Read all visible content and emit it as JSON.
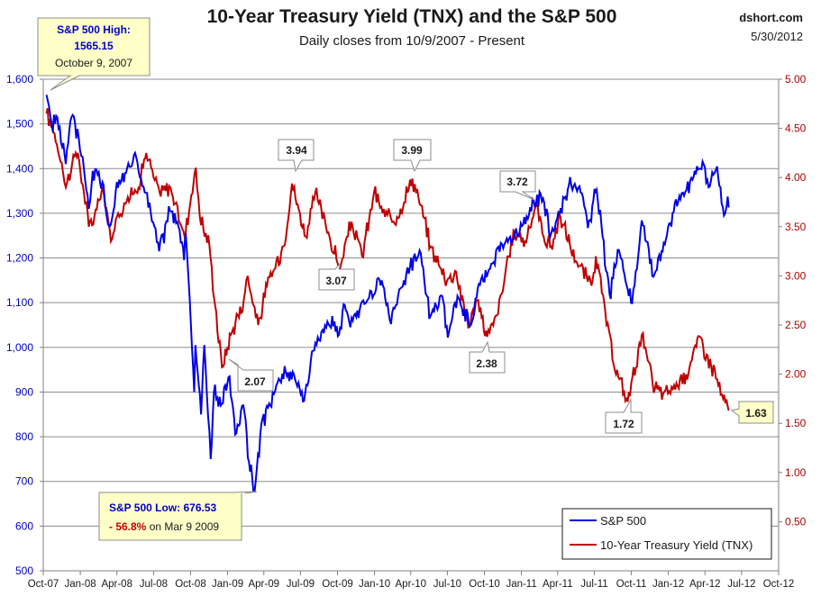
{
  "chart_data": {
    "type": "line",
    "title": "10-Year Treasury Yield (TNX) and the S&P 500",
    "subtitle": "Daily closes from 10/9/2007 - Present",
    "credit": "dshort.com",
    "date": "5/30/2012",
    "x_ticks": [
      "Oct-07",
      "Jan-08",
      "Apr-08",
      "Jul-08",
      "Oct-08",
      "Jan-09",
      "Apr-09",
      "Jul-09",
      "Oct-09",
      "Jan-10",
      "Apr-10",
      "Jul-10",
      "Oct-10",
      "Jan-11",
      "Apr-11",
      "Jul-11",
      "Oct-11",
      "Jan-12",
      "Apr-12",
      "Jul-12",
      "Oct-12"
    ],
    "x_range": [
      "2007-10-01",
      "2012-10-01"
    ],
    "y_left": {
      "min": 500,
      "max": 1600,
      "ticks": [
        "500",
        "600",
        "700",
        "800",
        "900",
        "1,000",
        "1,100",
        "1,200",
        "1,300",
        "1,400",
        "1,500",
        "1,600"
      ],
      "color": "#0000c8"
    },
    "y_right": {
      "min": 0.0,
      "max": 5.0,
      "ticks": [
        "0.50",
        "1.00",
        "1.50",
        "2.00",
        "2.50",
        "3.00",
        "3.50",
        "4.00",
        "4.50",
        "5.00"
      ],
      "color": "#b00000"
    },
    "grid": "horizontal",
    "legend_position": "bottom-right",
    "series": [
      {
        "name": "S&P 500",
        "axis": "left",
        "color": "#0000e6",
        "points": [
          [
            "2007-10-09",
            1565
          ],
          [
            "2007-10-22",
            1500
          ],
          [
            "2007-11-05",
            1515
          ],
          [
            "2007-11-26",
            1410
          ],
          [
            "2007-12-10",
            1515
          ],
          [
            "2007-12-28",
            1470
          ],
          [
            "2008-01-10",
            1400
          ],
          [
            "2008-01-22",
            1310
          ],
          [
            "2008-02-01",
            1395
          ],
          [
            "2008-02-25",
            1370
          ],
          [
            "2008-03-10",
            1275
          ],
          [
            "2008-03-17",
            1275
          ],
          [
            "2008-04-01",
            1370
          ],
          [
            "2008-04-21",
            1390
          ],
          [
            "2008-05-19",
            1425
          ],
          [
            "2008-06-06",
            1360
          ],
          [
            "2008-06-30",
            1280
          ],
          [
            "2008-07-15",
            1215
          ],
          [
            "2008-08-11",
            1305
          ],
          [
            "2008-09-01",
            1270
          ],
          [
            "2008-09-15",
            1195
          ],
          [
            "2008-09-19",
            1255
          ],
          [
            "2008-09-29",
            1105
          ],
          [
            "2008-10-10",
            900
          ],
          [
            "2008-10-13",
            1005
          ],
          [
            "2008-10-27",
            850
          ],
          [
            "2008-11-04",
            1005
          ],
          [
            "2008-11-20",
            750
          ],
          [
            "2008-11-28",
            900
          ],
          [
            "2008-12-15",
            870
          ],
          [
            "2009-01-06",
            935
          ],
          [
            "2009-01-20",
            805
          ],
          [
            "2009-02-09",
            870
          ],
          [
            "2009-02-23",
            745
          ],
          [
            "2009-03-09",
            677
          ],
          [
            "2009-03-26",
            830
          ],
          [
            "2009-04-17",
            870
          ],
          [
            "2009-05-08",
            930
          ],
          [
            "2009-06-12",
            945
          ],
          [
            "2009-07-10",
            880
          ],
          [
            "2009-08-07",
            1010
          ],
          [
            "2009-09-18",
            1070
          ],
          [
            "2009-10-02",
            1025
          ],
          [
            "2009-10-19",
            1095
          ],
          [
            "2009-11-02",
            1045
          ],
          [
            "2009-12-04",
            1105
          ],
          [
            "2010-01-19",
            1150
          ],
          [
            "2010-02-08",
            1060
          ],
          [
            "2010-03-15",
            1150
          ],
          [
            "2010-04-23",
            1217
          ],
          [
            "2010-05-20",
            1070
          ],
          [
            "2010-06-18",
            1115
          ],
          [
            "2010-07-02",
            1022
          ],
          [
            "2010-07-26",
            1115
          ],
          [
            "2010-08-26",
            1047
          ],
          [
            "2010-09-20",
            1140
          ],
          [
            "2010-10-15",
            1176
          ],
          [
            "2010-11-05",
            1225
          ],
          [
            "2010-12-10",
            1240
          ],
          [
            "2011-01-14",
            1293
          ],
          [
            "2011-02-18",
            1343
          ],
          [
            "2011-03-16",
            1256
          ],
          [
            "2011-04-29",
            1363
          ],
          [
            "2011-05-31",
            1345
          ],
          [
            "2011-06-15",
            1267
          ],
          [
            "2011-07-07",
            1353
          ],
          [
            "2011-08-08",
            1119
          ],
          [
            "2011-08-31",
            1218
          ],
          [
            "2011-09-22",
            1130
          ],
          [
            "2011-10-03",
            1099
          ],
          [
            "2011-10-27",
            1284
          ],
          [
            "2011-11-25",
            1158
          ],
          [
            "2011-12-15",
            1215
          ],
          [
            "2012-01-03",
            1277
          ],
          [
            "2012-02-03",
            1345
          ],
          [
            "2012-03-01",
            1375
          ],
          [
            "2012-03-26",
            1416
          ],
          [
            "2012-04-10",
            1358
          ],
          [
            "2012-05-01",
            1405
          ],
          [
            "2012-05-18",
            1295
          ],
          [
            "2012-05-25",
            1318
          ],
          [
            "2012-05-30",
            1313
          ]
        ]
      },
      {
        "name": "10-Year Treasury Yield (TNX)",
        "axis": "right",
        "color": "#c00000",
        "points": [
          [
            "2007-10-09",
            4.65
          ],
          [
            "2007-10-29",
            4.45
          ],
          [
            "2007-11-16",
            4.15
          ],
          [
            "2007-11-26",
            3.9
          ],
          [
            "2007-12-12",
            4.15
          ],
          [
            "2007-12-26",
            4.25
          ],
          [
            "2008-01-10",
            3.85
          ],
          [
            "2008-01-22",
            3.5
          ],
          [
            "2008-02-05",
            3.6
          ],
          [
            "2008-02-26",
            3.9
          ],
          [
            "2008-03-17",
            3.35
          ],
          [
            "2008-04-01",
            3.6
          ],
          [
            "2008-04-28",
            3.8
          ],
          [
            "2008-05-19",
            3.85
          ],
          [
            "2008-06-13",
            4.25
          ],
          [
            "2008-07-01",
            4.0
          ],
          [
            "2008-07-16",
            3.85
          ],
          [
            "2008-08-12",
            3.9
          ],
          [
            "2008-09-16",
            3.4
          ],
          [
            "2008-10-14",
            4.1
          ],
          [
            "2008-10-24",
            3.6
          ],
          [
            "2008-11-17",
            3.3
          ],
          [
            "2008-12-01",
            2.7
          ],
          [
            "2008-12-18",
            2.07
          ],
          [
            "2009-01-09",
            2.4
          ],
          [
            "2009-02-10",
            2.75
          ],
          [
            "2009-02-20",
            3.0
          ],
          [
            "2009-03-18",
            2.5
          ],
          [
            "2009-04-09",
            2.9
          ],
          [
            "2009-05-20",
            3.3
          ],
          [
            "2009-06-10",
            3.94
          ],
          [
            "2009-07-14",
            3.4
          ],
          [
            "2009-08-07",
            3.85
          ],
          [
            "2009-09-11",
            3.4
          ],
          [
            "2009-10-07",
            3.07
          ],
          [
            "2009-11-05",
            3.55
          ],
          [
            "2009-12-01",
            3.2
          ],
          [
            "2009-12-31",
            3.85
          ],
          [
            "2010-01-27",
            3.6
          ],
          [
            "2010-02-26",
            3.6
          ],
          [
            "2010-04-05",
            3.99
          ],
          [
            "2010-04-20",
            3.8
          ],
          [
            "2010-05-20",
            3.3
          ],
          [
            "2010-06-30",
            2.95
          ],
          [
            "2010-07-20",
            3.05
          ],
          [
            "2010-08-25",
            2.5
          ],
          [
            "2010-09-13",
            2.75
          ],
          [
            "2010-10-08",
            2.38
          ],
          [
            "2010-11-01",
            2.6
          ],
          [
            "2010-12-15",
            3.45
          ],
          [
            "2011-01-10",
            3.35
          ],
          [
            "2011-02-08",
            3.72
          ],
          [
            "2011-02-25",
            3.4
          ],
          [
            "2011-03-16",
            3.3
          ],
          [
            "2011-04-08",
            3.6
          ],
          [
            "2011-05-16",
            3.15
          ],
          [
            "2011-06-24",
            2.9
          ],
          [
            "2011-07-05",
            3.2
          ],
          [
            "2011-08-18",
            2.1
          ],
          [
            "2011-09-22",
            1.72
          ],
          [
            "2011-10-27",
            2.4
          ],
          [
            "2011-11-23",
            1.9
          ],
          [
            "2011-12-19",
            1.8
          ],
          [
            "2012-01-12",
            1.85
          ],
          [
            "2012-02-14",
            2.0
          ],
          [
            "2012-03-19",
            2.38
          ],
          [
            "2012-04-05",
            2.2
          ],
          [
            "2012-05-01",
            1.95
          ],
          [
            "2012-05-16",
            1.75
          ],
          [
            "2012-05-30",
            1.63
          ]
        ]
      }
    ],
    "annotations": [
      {
        "id": "sp-high",
        "lines": [
          "S&P 500 High:",
          "1565.15",
          "October 9, 2007"
        ],
        "fill": "#ffffc8"
      },
      {
        "id": "sp-low",
        "lines": [
          "S&P 500 Low: 676.53",
          "- 56.8%",
          " on Mar 9 2009"
        ],
        "fill": "#ffffc8"
      },
      {
        "id": "tnx-394",
        "text": "3.94"
      },
      {
        "id": "tnx-399",
        "text": "3.99"
      },
      {
        "id": "tnx-372",
        "text": "3.72"
      },
      {
        "id": "tnx-307",
        "text": "3.07"
      },
      {
        "id": "tnx-207",
        "text": "2.07"
      },
      {
        "id": "tnx-238",
        "text": "2.38"
      },
      {
        "id": "tnx-172",
        "text": "1.72"
      },
      {
        "id": "tnx-163",
        "text": "1.63",
        "fill": "#ffffc8"
      }
    ]
  }
}
